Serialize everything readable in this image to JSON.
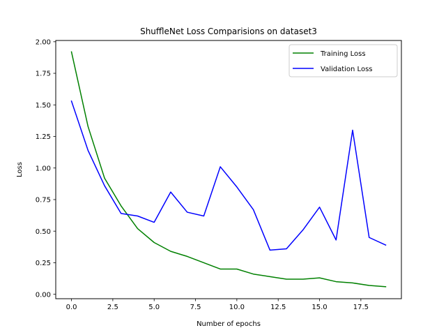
{
  "chart_data": {
    "type": "line",
    "title": "ShuffleNet Loss Comparisions on dataset3",
    "xlabel": "Number of epochs",
    "ylabel": "Loss",
    "xlim": [
      -0.95,
      19.95
    ],
    "ylim": [
      -0.035,
      2.01
    ],
    "grid": false,
    "legend_position": "upper right",
    "x": [
      0,
      1,
      2,
      3,
      4,
      5,
      6,
      7,
      8,
      9,
      10,
      11,
      12,
      13,
      14,
      15,
      16,
      17,
      18,
      19
    ],
    "xticks": [
      "0.0",
      "2.5",
      "5.0",
      "7.5",
      "10.0",
      "12.5",
      "15.0",
      "17.5"
    ],
    "xtick_values": [
      0,
      2.5,
      5,
      7.5,
      10,
      12.5,
      15,
      17.5
    ],
    "yticks": [
      "0.00",
      "0.25",
      "0.50",
      "0.75",
      "1.00",
      "1.25",
      "1.50",
      "1.75",
      "2.00"
    ],
    "ytick_values": [
      0,
      0.25,
      0.5,
      0.75,
      1.0,
      1.25,
      1.5,
      1.75,
      2.0
    ],
    "series": [
      {
        "name": "Training Loss",
        "color": "#008000",
        "values": [
          1.92,
          1.33,
          0.92,
          0.7,
          0.52,
          0.41,
          0.34,
          0.3,
          0.25,
          0.2,
          0.2,
          0.16,
          0.14,
          0.12,
          0.12,
          0.13,
          0.1,
          0.09,
          0.07,
          0.06
        ]
      },
      {
        "name": "Validation Loss",
        "color": "#0000ff",
        "values": [
          1.53,
          1.14,
          0.86,
          0.64,
          0.62,
          0.57,
          0.81,
          0.65,
          0.62,
          1.01,
          0.85,
          0.67,
          0.35,
          0.36,
          0.51,
          0.69,
          0.43,
          1.3,
          0.45,
          0.39
        ]
      }
    ]
  }
}
